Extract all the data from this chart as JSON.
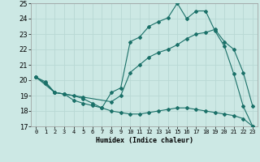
{
  "xlabel": "Humidex (Indice chaleur)",
  "xlim": [
    -0.5,
    23.5
  ],
  "ylim": [
    17,
    25
  ],
  "xticks": [
    0,
    1,
    2,
    3,
    4,
    5,
    6,
    7,
    8,
    9,
    10,
    11,
    12,
    13,
    14,
    15,
    16,
    17,
    18,
    19,
    20,
    21,
    22,
    23
  ],
  "yticks": [
    17,
    18,
    19,
    20,
    21,
    22,
    23,
    24,
    25
  ],
  "bg_color": "#cce8e4",
  "grid_color": "#b8d8d4",
  "line_color": "#1a7068",
  "line1_x": [
    0,
    1,
    2,
    3,
    4,
    5,
    6,
    7,
    8,
    9,
    10,
    11,
    12,
    13,
    14,
    15,
    16,
    17,
    18,
    19,
    20,
    21,
    22,
    23
  ],
  "line1_y": [
    20.2,
    19.8,
    19.2,
    19.1,
    18.7,
    18.5,
    18.35,
    18.2,
    19.2,
    19.5,
    22.5,
    22.8,
    23.5,
    23.8,
    24.05,
    25.0,
    24.0,
    24.5,
    24.5,
    23.2,
    22.2,
    20.4,
    18.3,
    17.0
  ],
  "line2_x": [
    0,
    2,
    3,
    5,
    8,
    9,
    10,
    11,
    12,
    13,
    14,
    15,
    16,
    17,
    18,
    19,
    20,
    21,
    22,
    23
  ],
  "line2_y": [
    20.2,
    19.2,
    19.1,
    18.9,
    18.6,
    19.0,
    20.5,
    21.0,
    21.5,
    21.8,
    22.0,
    22.3,
    22.7,
    23.0,
    23.1,
    23.3,
    22.5,
    22.0,
    20.5,
    18.3
  ],
  "line3_x": [
    0,
    1,
    2,
    3,
    4,
    5,
    6,
    7,
    8,
    9,
    10,
    11,
    12,
    13,
    14,
    15,
    16,
    17,
    18,
    19,
    20,
    21,
    22,
    23
  ],
  "line3_y": [
    20.2,
    19.9,
    19.2,
    19.1,
    19.0,
    18.8,
    18.5,
    18.2,
    18.0,
    17.9,
    17.8,
    17.8,
    17.9,
    18.0,
    18.1,
    18.2,
    18.2,
    18.1,
    18.0,
    17.9,
    17.8,
    17.7,
    17.5,
    17.0
  ]
}
